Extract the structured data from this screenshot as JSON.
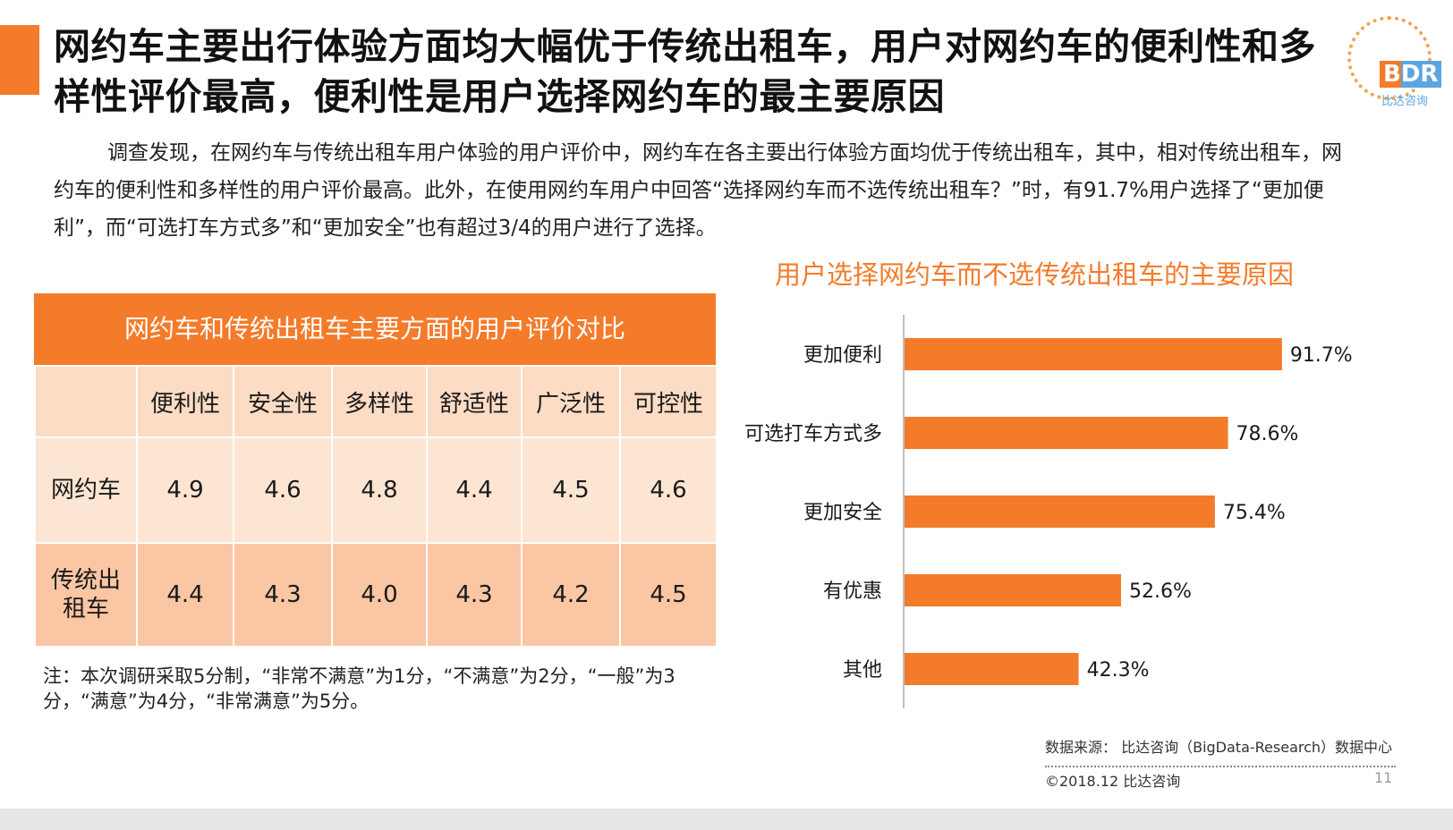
{
  "title": "网约车主要出行体验方面均大幅优于传统出租车，用户对网约车的便利性和多样性评价最高，便利性是用户选择网约车的最主要原因",
  "logo": {
    "mark": "BDR",
    "name": "比达咨询"
  },
  "intro": "调查发现，在网约车与传统出租车用户体验的用户评价中，网约车在各主要出行体验方面均优于传统出租车，其中，相对传统出租车，网约车的便利性和多样性的用户评价最高。此外，在使用网约车用户中回答“选择网约车而不选传统出租车？”时，有91.7%用户选择了“更加便利”，而“可选打车方式多”和“更加安全”也有超过3/4的用户进行了选择。",
  "table": {
    "title": "网约车和传统出租车主要方面的用户评价对比",
    "columns": [
      "便利性",
      "安全性",
      "多样性",
      "舒适性",
      "广泛性",
      "可控性"
    ],
    "rows": [
      {
        "label": "网约车",
        "values": [
          "4.9",
          "4.6",
          "4.8",
          "4.4",
          "4.5",
          "4.6"
        ]
      },
      {
        "label": "传统出租车",
        "values": [
          "4.4",
          "4.3",
          "4.0",
          "4.3",
          "4.2",
          "4.5"
        ]
      }
    ]
  },
  "note": "注：本次调研采取5分制，“非常不满意”为1分，“不满意”为2分，“一般”为3分，“满意”为4分，“非常满意”为5分。",
  "chart_data": {
    "type": "bar",
    "orientation": "horizontal",
    "title": "用户选择网约车而不选传统出租车的主要原因",
    "categories": [
      "更加便利",
      "可选打车方式多",
      "更加安全",
      "有优惠",
      "其他"
    ],
    "values": [
      91.7,
      78.6,
      75.4,
      52.6,
      42.3
    ],
    "value_labels": [
      "91.7%",
      "78.6%",
      "75.4%",
      "52.6%",
      "42.3%"
    ],
    "unit": "%",
    "xlim": [
      0,
      100
    ],
    "grid": false,
    "bar_color": "#f37b2a"
  },
  "footer": {
    "source": "数据来源：  比达咨询（BigData-Research）数据中心",
    "copyright": "©2018.12  比达咨询",
    "page": "11"
  },
  "colors": {
    "accent": "#f37b2a",
    "header_cell": "#fcdcc4",
    "row1": "#fde5d3",
    "row2": "#fbc6a3"
  }
}
